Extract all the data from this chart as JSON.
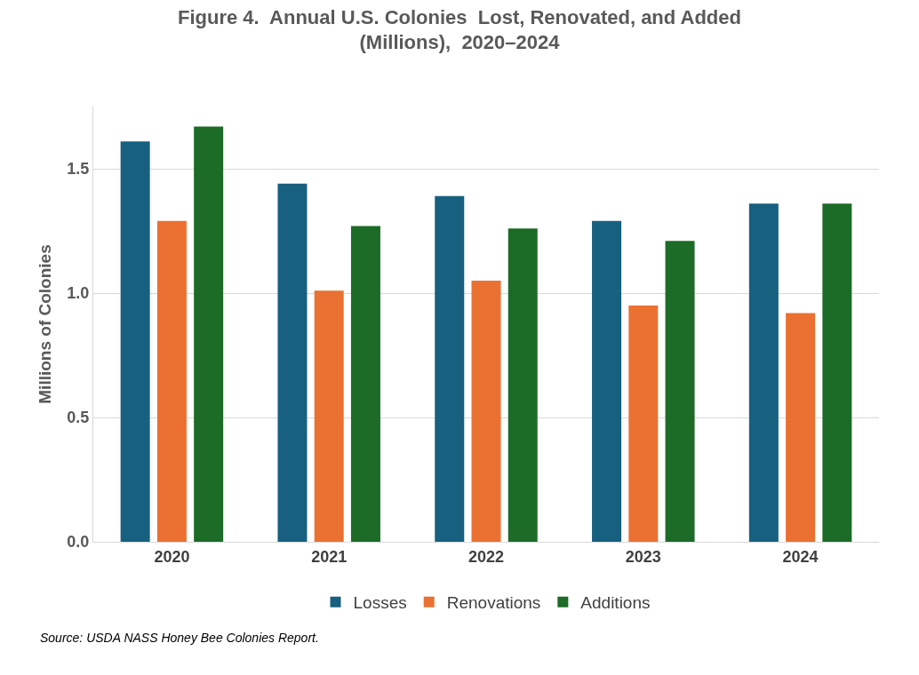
{
  "chart_data": {
    "type": "bar",
    "title": "Figure 4.  Annual U.S. Colonies  Lost, Renovated, and Added\n(Millions),  2020–2024",
    "ylabel": "Millions of Colonies",
    "categories": [
      "2020",
      "2021",
      "2022",
      "2023",
      "2024"
    ],
    "series": [
      {
        "name": "Losses",
        "color": "#17607f",
        "values": [
          1.61,
          1.44,
          1.39,
          1.29,
          1.36
        ]
      },
      {
        "name": "Renovations",
        "color": "#ea7131",
        "values": [
          1.29,
          1.01,
          1.05,
          0.95,
          0.92
        ]
      },
      {
        "name": "Additions",
        "color": "#1c6b27",
        "values": [
          1.67,
          1.27,
          1.26,
          1.21,
          1.36
        ]
      }
    ],
    "ylim": [
      0,
      1.75
    ],
    "yticks": [
      {
        "value": 0,
        "label": "0.0"
      },
      {
        "value": 0.5,
        "label": "0.5"
      },
      {
        "value": 1,
        "label": "1.0"
      },
      {
        "value": 1.5,
        "label": "1.5"
      }
    ],
    "grid": "y",
    "legend": "bottom",
    "annotations": [
      "Source: USDA NASS Honey Bee Colonies Report."
    ]
  }
}
